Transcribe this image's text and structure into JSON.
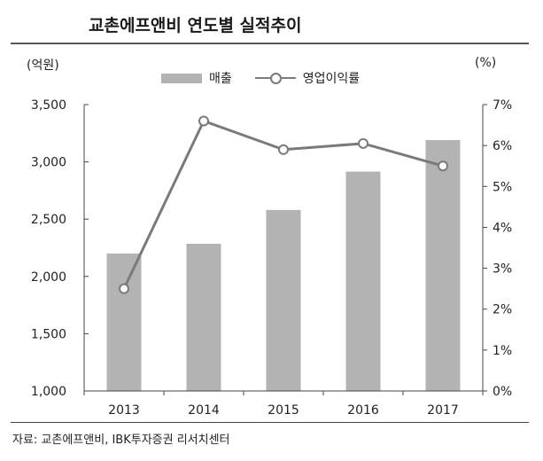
{
  "title": "교촌에프앤비 연도별 실적추이",
  "unit_left": "(억원)",
  "unit_right": "(%)",
  "legend": {
    "bar_label": "매출",
    "line_label": "영업이익률"
  },
  "source": "자료: 교촌에프앤비, IBK투자증권 리서치센터",
  "colors": {
    "bar": "#b3b3b3",
    "line": "#7a7a7a",
    "axis": "#444444"
  },
  "chart_data": {
    "type": "bar",
    "categories": [
      "2013",
      "2014",
      "2015",
      "2016",
      "2017"
    ],
    "series": [
      {
        "name": "매출",
        "type": "bar",
        "axis": "left",
        "values": [
          2200,
          2285,
          2580,
          2915,
          3190
        ]
      },
      {
        "name": "영업이익률",
        "type": "line",
        "axis": "right",
        "values": [
          2.5,
          6.6,
          5.9,
          6.05,
          5.5
        ]
      }
    ],
    "y_left": {
      "min": 1000,
      "max": 3500,
      "ticks": [
        1000,
        1500,
        2000,
        2500,
        3000,
        3500
      ],
      "tick_labels": [
        "1,000",
        "1,500",
        "2,000",
        "2,500",
        "3,000",
        "3,500"
      ]
    },
    "y_right": {
      "min": 0,
      "max": 7,
      "ticks": [
        0,
        1,
        2,
        3,
        4,
        5,
        6,
        7
      ],
      "tick_labels": [
        "0%",
        "1%",
        "2%",
        "3%",
        "4%",
        "5%",
        "6%",
        "7%"
      ]
    },
    "grid": false,
    "legend_position": "top-center"
  }
}
